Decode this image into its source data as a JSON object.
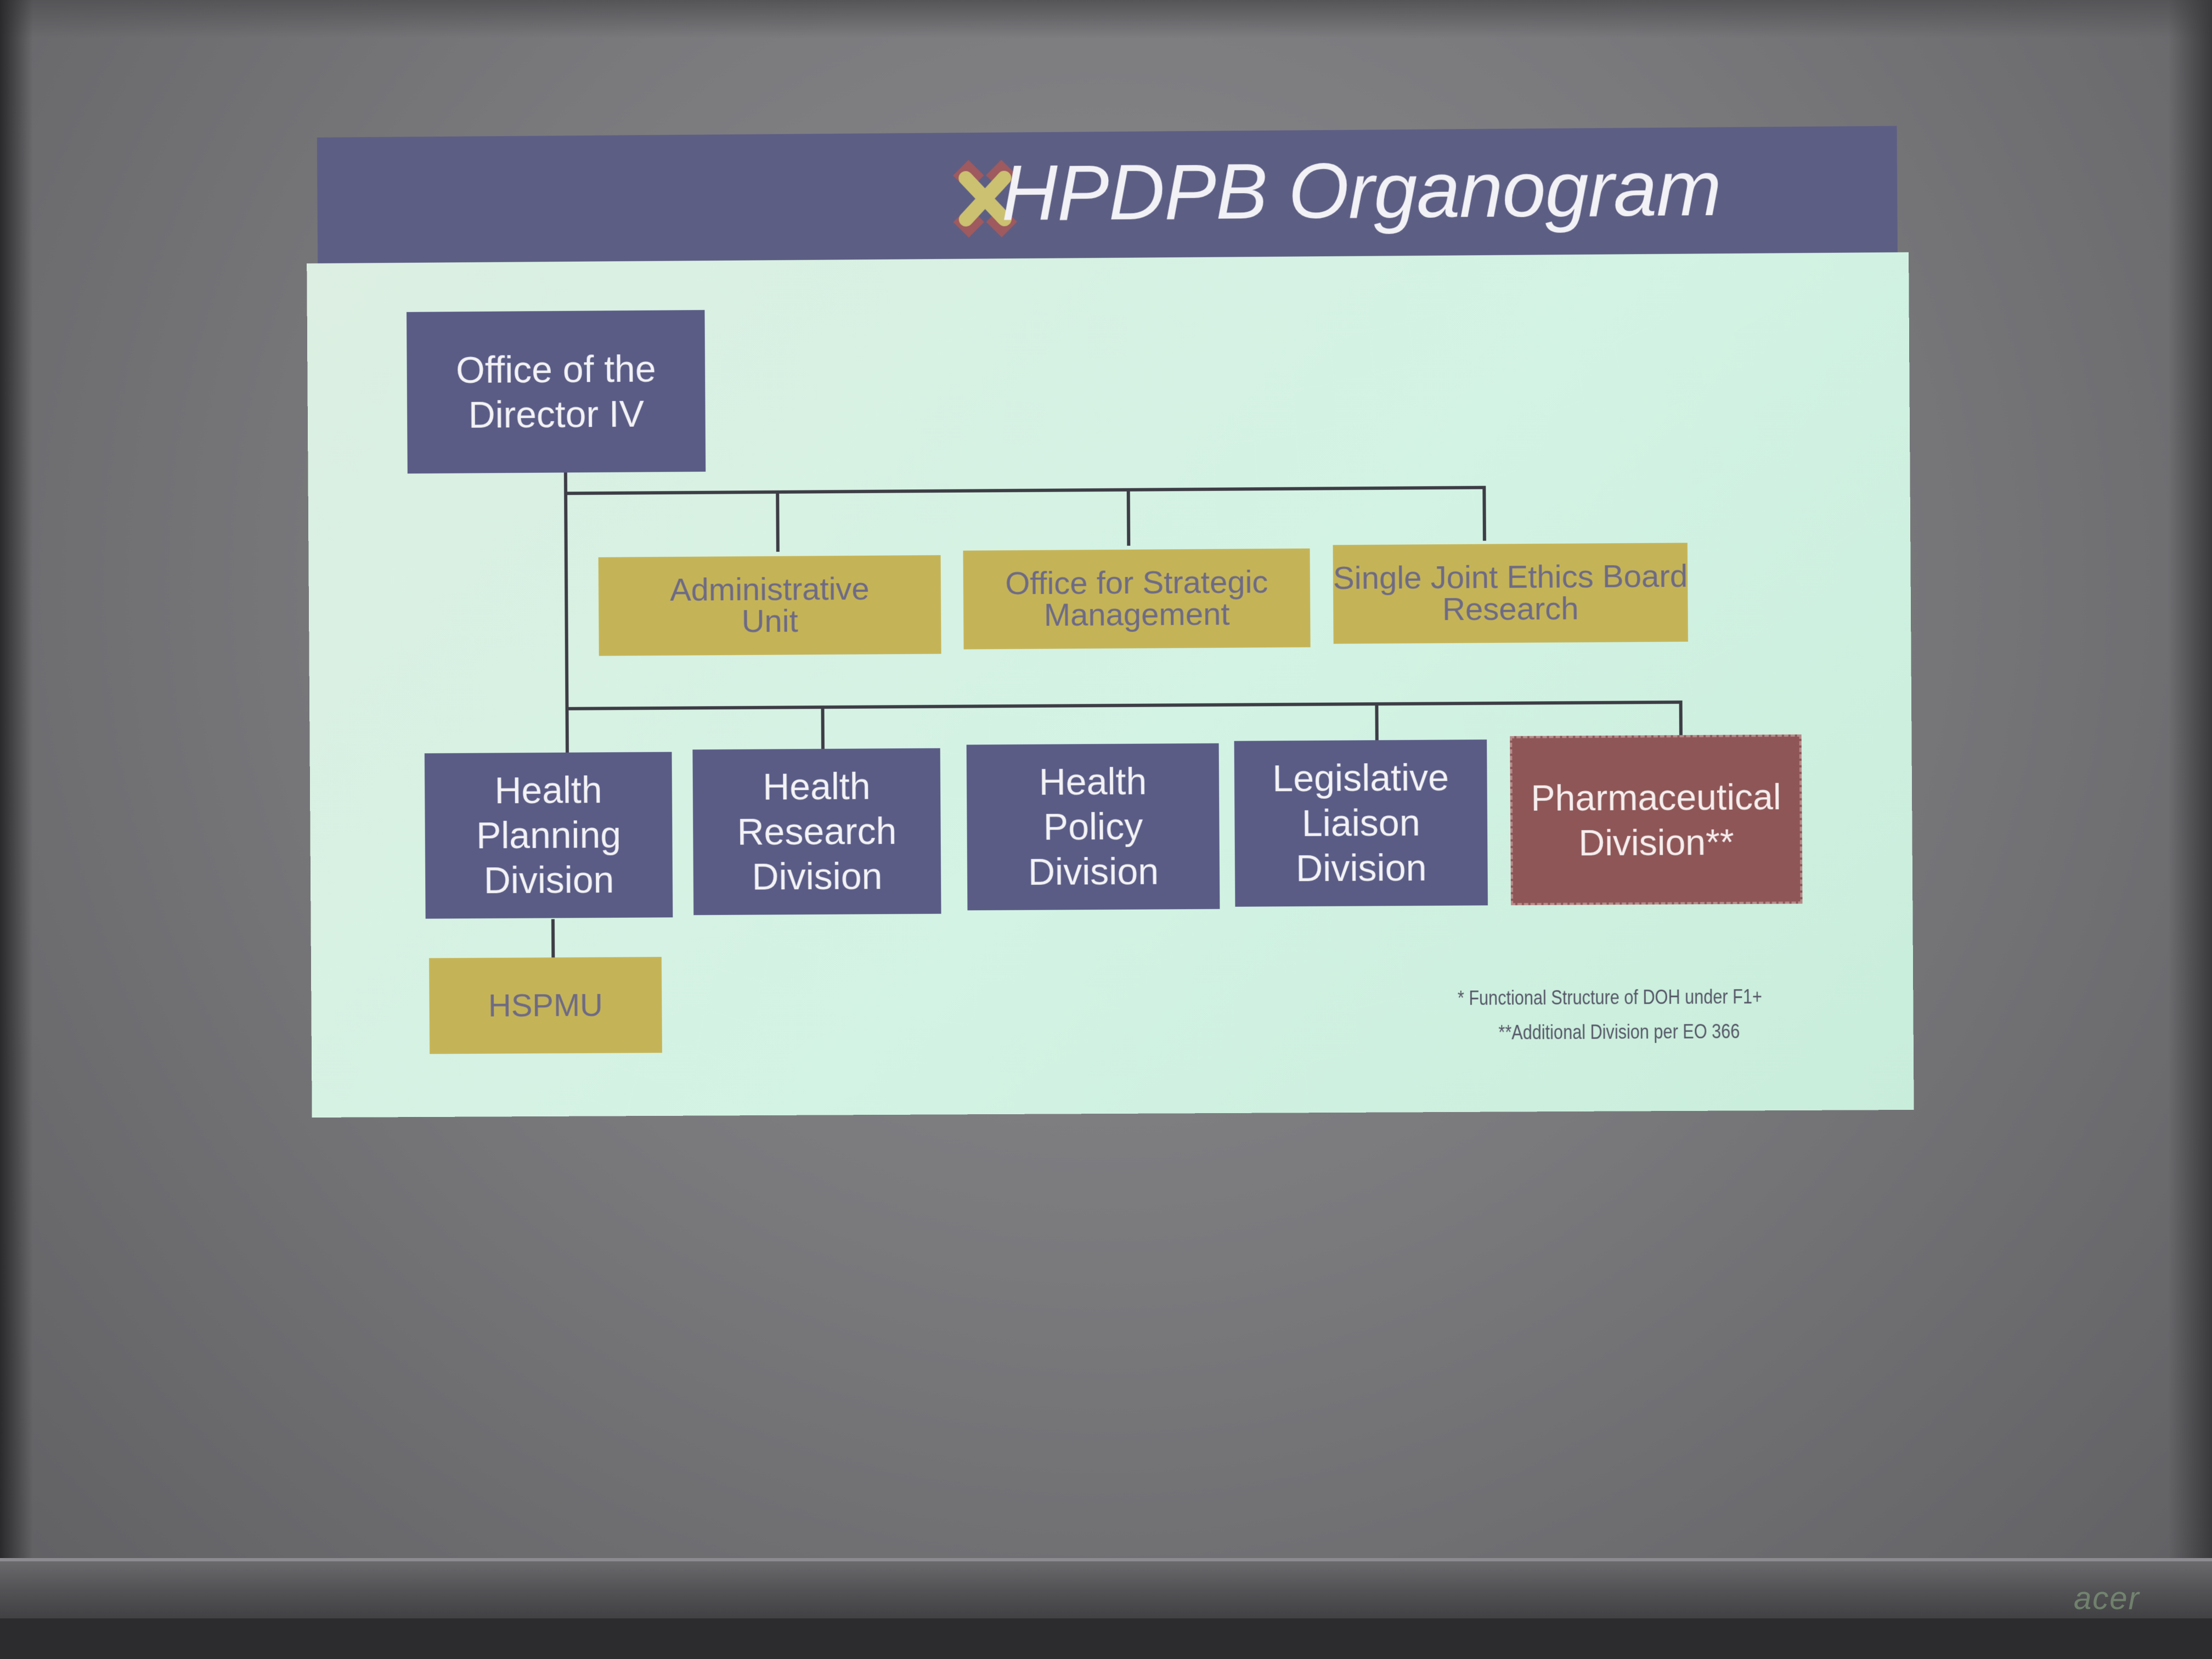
{
  "slide": {
    "title": "HPDPB Organogram",
    "logo_icon": "cross-logo-icon"
  },
  "organogram": {
    "director": "Office of the\nDirector IV",
    "staff_units": [
      "Administrative\nUnit",
      "Office for Strategic\nManagement",
      "Single Joint Ethics Board\nResearch"
    ],
    "divisions": [
      "Health\nPlanning\nDivision",
      "Health\nResearch\nDivision",
      "Health\nPolicy\nDivision",
      "Legislative\nLiaison\nDivision",
      "Pharmaceutical\nDivision**"
    ],
    "sub_unit": "HSPMU"
  },
  "footnotes": [
    "* Functional Structure of DOH under F1+",
    "**Additional Division per EO 366"
  ],
  "projector": {
    "brand": "acer"
  },
  "colors": {
    "navy_box": "#5a5c86",
    "gold_box": "#c5b457",
    "maroon_box": "#8e5657",
    "slide_background": "#d3f3e4",
    "header_band": "#5d5e84"
  }
}
